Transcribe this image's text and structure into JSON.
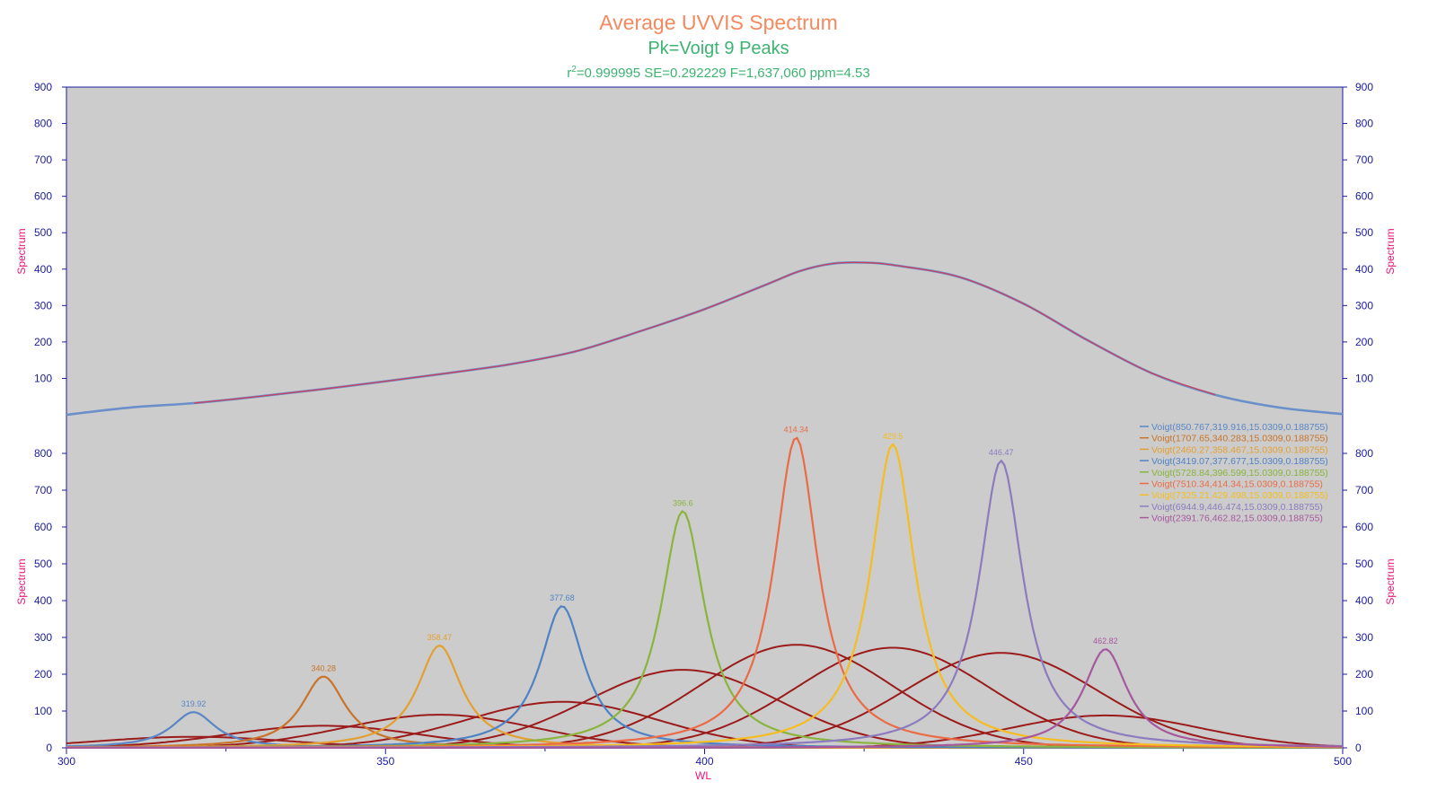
{
  "title": {
    "main": "Average UVVIS Spectrum",
    "sub": "Pk=Voigt  9 Peaks",
    "r2_prefix": "r",
    "r2_sup": "2",
    "stats": "=0.999995  SE=0.292229  F=1,637,060  ppm=4.53"
  },
  "axis_labels": {
    "y_top_left": "Spectrum",
    "y_top_right": "Spectrum",
    "y_bottom_left": "Spectrum",
    "y_bottom_right": "Spectrum",
    "x": "WL"
  },
  "chart_data": [
    {
      "type": "line",
      "panel": "top",
      "xlim": [
        300,
        500
      ],
      "ylim": [
        0,
        900
      ],
      "x_ticks": [
        "300",
        "350",
        "400",
        "450",
        "500"
      ],
      "y_ticks": [
        "100",
        "200",
        "300",
        "400",
        "500",
        "600",
        "700",
        "800",
        "900"
      ],
      "series": [
        {
          "color": "#6a8fc9",
          "x": [
            300,
            310,
            320,
            330,
            340,
            350,
            360,
            370,
            380,
            390,
            400,
            410,
            415,
            420,
            425,
            430,
            440,
            450,
            460,
            470,
            480,
            490,
            500
          ],
          "y": [
            0,
            20,
            32,
            50,
            70,
            92,
            115,
            140,
            175,
            230,
            290,
            360,
            395,
            415,
            418,
            410,
            378,
            305,
            205,
            115,
            55,
            20,
            2
          ]
        },
        {
          "color": "#d13b56",
          "x": [
            320,
            330,
            340,
            350,
            360,
            370,
            380,
            390,
            400,
            410,
            415,
            420,
            425,
            430,
            440,
            450,
            460,
            470,
            480
          ],
          "y": [
            32,
            50,
            70,
            92,
            115,
            140,
            175,
            230,
            290,
            360,
            395,
            415,
            418,
            410,
            378,
            305,
            205,
            115,
            55
          ]
        }
      ],
      "grid": false
    },
    {
      "type": "line",
      "panel": "bottom",
      "xlim": [
        300,
        500
      ],
      "ylim": [
        0,
        900
      ],
      "x_ticks": [
        "300",
        "350",
        "400",
        "450",
        "500"
      ],
      "y_ticks": [
        "0",
        "100",
        "200",
        "300",
        "400",
        "500",
        "600",
        "700",
        "800"
      ],
      "gamma": 4.2,
      "broad_sigma": 15.0309,
      "peaks": [
        {
          "legend": "Voigt(850.767,319.916,15.0309,0.188755)",
          "label": "319.92",
          "center": 319.916,
          "height": 97,
          "broad_height": 30,
          "color": "#5a86c5"
        },
        {
          "legend": "Voigt(1707.65,340.283,15.0309,0.188755)",
          "label": "340.28",
          "center": 340.283,
          "height": 194,
          "broad_height": 60,
          "color": "#c8742a"
        },
        {
          "legend": "Voigt(2460.27,358.467,15.0309,0.188755)",
          "label": "358.47",
          "center": 358.467,
          "height": 278,
          "broad_height": 90,
          "color": "#e3a032"
        },
        {
          "legend": "Voigt(3419.07,377.677,15.0309,0.188755)",
          "label": "377.68",
          "center": 377.677,
          "height": 385,
          "broad_height": 125,
          "color": "#4f82c4"
        },
        {
          "legend": "Voigt(5728.84,396.599,15.0309,0.188755)",
          "label": "396.6",
          "center": 396.599,
          "height": 643,
          "broad_height": 212,
          "color": "#8ab43c"
        },
        {
          "legend": "Voigt(7510.34,414.34,15.0309,0.188755)",
          "label": "414.34",
          "center": 414.34,
          "height": 843,
          "broad_height": 280,
          "color": "#ea6b45"
        },
        {
          "legend": "Voigt(7325.21,429.498,15.0309,0.188755)",
          "label": "429.5",
          "center": 429.498,
          "height": 825,
          "broad_height": 272,
          "color": "#f5bd1f"
        },
        {
          "legend": "Voigt(6944.9,446.474,15.0309,0.188755)",
          "label": "446.47",
          "center": 446.474,
          "height": 780,
          "broad_height": 258,
          "color": "#8c7bbe"
        },
        {
          "legend": "Voigt(2391.76,462.82,15.0309,0.188755)",
          "label": "462.82",
          "center": 462.82,
          "height": 268,
          "broad_height": 88,
          "color": "#a6589e"
        }
      ],
      "broad_color": "#9b1b1b",
      "grid": false,
      "legend_placement": "right"
    }
  ],
  "colors": {
    "plot_bg": "#cccccc",
    "axis": "#1a1aa0",
    "title": "#f4895f",
    "subtitle": "#3cb371",
    "axis_title": "#e8167a"
  }
}
